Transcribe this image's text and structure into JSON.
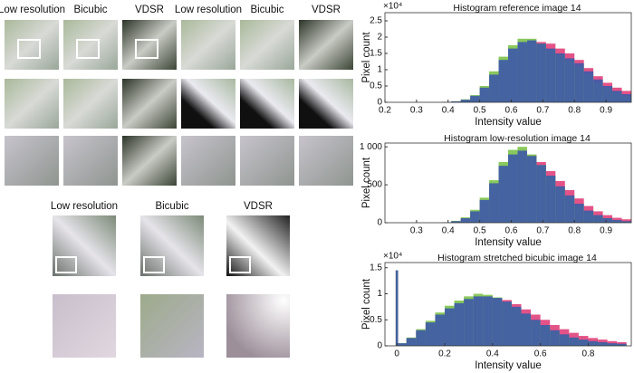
{
  "image_panels": {
    "top_labels": [
      "Low resolution",
      "Bicubic",
      "VDSR",
      "Low resolution",
      "Bicubic",
      "VDSR"
    ],
    "bottom_labels": [
      "Low resolution",
      "Bicubic",
      "VDSR"
    ]
  },
  "chart_data": [
    {
      "type": "histogram",
      "title": "Histogram reference image 14",
      "x_label": "Intensity value",
      "y_label": "Pixel count",
      "y_multiplier": "×10⁴",
      "bins": [
        0.2,
        0.23,
        0.26,
        0.29,
        0.32,
        0.35,
        0.38,
        0.41,
        0.44,
        0.47,
        0.5,
        0.53,
        0.56,
        0.59,
        0.62,
        0.65,
        0.68,
        0.71,
        0.74,
        0.77,
        0.8,
        0.83,
        0.86,
        0.89,
        0.92,
        0.95,
        0.98
      ],
      "series": [
        {
          "color": "#e0407a",
          "values": [
            0,
            0,
            0,
            0,
            0,
            0,
            0,
            0.02,
            0.05,
            0.15,
            0.35,
            0.7,
            1.1,
            1.5,
            1.75,
            1.85,
            1.85,
            1.8,
            1.65,
            1.5,
            1.3,
            1.05,
            0.8,
            0.6,
            0.45,
            0.35
          ]
        },
        {
          "color": "#7cc24a",
          "values": [
            0,
            0,
            0,
            0,
            0,
            0,
            0.01,
            0.03,
            0.09,
            0.22,
            0.5,
            0.95,
            1.4,
            1.75,
            1.95,
            1.95,
            1.8,
            1.6,
            1.45,
            1.3,
            1.1,
            0.85,
            0.6,
            0.45,
            0.3,
            0.2
          ]
        },
        {
          "color": "#3d5aa8",
          "values": [
            0,
            0,
            0,
            0,
            0,
            0,
            0.01,
            0.03,
            0.08,
            0.2,
            0.45,
            0.85,
            1.3,
            1.65,
            1.85,
            1.9,
            1.8,
            1.65,
            1.5,
            1.35,
            1.2,
            0.95,
            0.7,
            0.5,
            0.35,
            0.25
          ]
        }
      ],
      "xlim": [
        0.2,
        0.98
      ],
      "xticks": [
        0.2,
        0.3,
        0.4,
        0.5,
        0.6,
        0.7,
        0.8,
        0.9
      ],
      "ylim": [
        0,
        2.75
      ],
      "yticks": [
        0,
        0.5,
        1,
        1.5,
        2,
        2.5
      ]
    },
    {
      "type": "histogram",
      "title": "Histogram low-resolution image 14",
      "x_label": "Intensity value",
      "y_label": "Pixel count",
      "bins": [
        0.2,
        0.23,
        0.26,
        0.29,
        0.32,
        0.35,
        0.38,
        0.41,
        0.44,
        0.47,
        0.5,
        0.53,
        0.56,
        0.59,
        0.62,
        0.65,
        0.68,
        0.71,
        0.74,
        0.77,
        0.8,
        0.83,
        0.86,
        0.89,
        0.92,
        0.95,
        0.98
      ],
      "series": [
        {
          "color": "#e0407a",
          "values": [
            0,
            0,
            0,
            0,
            0,
            0,
            4,
            15,
            50,
            130,
            270,
            470,
            700,
            860,
            930,
            890,
            800,
            680,
            550,
            430,
            320,
            220,
            150,
            100,
            65,
            45
          ]
        },
        {
          "color": "#7cc24a",
          "values": [
            0,
            0,
            0,
            0,
            0,
            0,
            6,
            25,
            70,
            170,
            330,
            560,
            800,
            960,
            1000,
            900,
            760,
            610,
            460,
            340,
            230,
            150,
            90,
            55,
            30,
            18
          ]
        },
        {
          "color": "#3d5aa8",
          "values": [
            0,
            0,
            0,
            0,
            0,
            0,
            5,
            20,
            60,
            150,
            300,
            520,
            750,
            900,
            950,
            880,
            760,
            620,
            480,
            360,
            250,
            160,
            100,
            60,
            35,
            20
          ]
        }
      ],
      "xlim": [
        0.2,
        0.98
      ],
      "xticks": [
        0.3,
        0.4,
        0.5,
        0.6,
        0.7,
        0.8,
        0.9
      ],
      "ylim": [
        0,
        1050
      ],
      "yticks": [
        0,
        500,
        {
          "value": 1000,
          "label": "1 000"
        }
      ]
    },
    {
      "type": "histogram",
      "title": "Histogram stretched bicubic image 14",
      "x_label": "Intensity value",
      "y_label": "Pixel count",
      "y_multiplier": "×10⁴",
      "bins": [
        -0.005,
        0.005,
        0.04,
        0.08,
        0.12,
        0.16,
        0.2,
        0.24,
        0.28,
        0.32,
        0.36,
        0.4,
        0.44,
        0.48,
        0.52,
        0.56,
        0.6,
        0.64,
        0.68,
        0.72,
        0.76,
        0.8,
        0.84,
        0.88,
        0.92,
        0.96
      ],
      "series": [
        {
          "color": "#e0407a",
          "values": [
            1.45,
            0.04,
            0.13,
            0.27,
            0.41,
            0.55,
            0.67,
            0.77,
            0.85,
            0.9,
            0.92,
            0.92,
            0.88,
            0.8,
            0.7,
            0.6,
            0.5,
            0.4,
            0.32,
            0.25,
            0.19,
            0.15,
            0.12,
            0.09,
            0.07
          ]
        },
        {
          "color": "#7cc24a",
          "values": [
            1.45,
            0.05,
            0.16,
            0.32,
            0.48,
            0.64,
            0.77,
            0.87,
            0.95,
            1.0,
            0.98,
            0.93,
            0.84,
            0.73,
            0.6,
            0.48,
            0.38,
            0.28,
            0.2,
            0.15,
            0.11,
            0.08,
            0.06,
            0.04,
            0.03
          ]
        },
        {
          "color": "#3d5aa8",
          "values": [
            1.45,
            0.05,
            0.15,
            0.3,
            0.45,
            0.6,
            0.72,
            0.82,
            0.9,
            0.95,
            0.95,
            0.92,
            0.85,
            0.75,
            0.62,
            0.5,
            0.4,
            0.3,
            0.22,
            0.16,
            0.12,
            0.09,
            0.07,
            0.05,
            0.04
          ]
        }
      ],
      "xlim": [
        -0.05,
        0.98
      ],
      "xticks": [
        0,
        0.2,
        0.4,
        0.6,
        0.8
      ],
      "ylim": [
        0,
        1.6
      ],
      "yticks": [
        0,
        0.5,
        1,
        1.5
      ]
    }
  ]
}
